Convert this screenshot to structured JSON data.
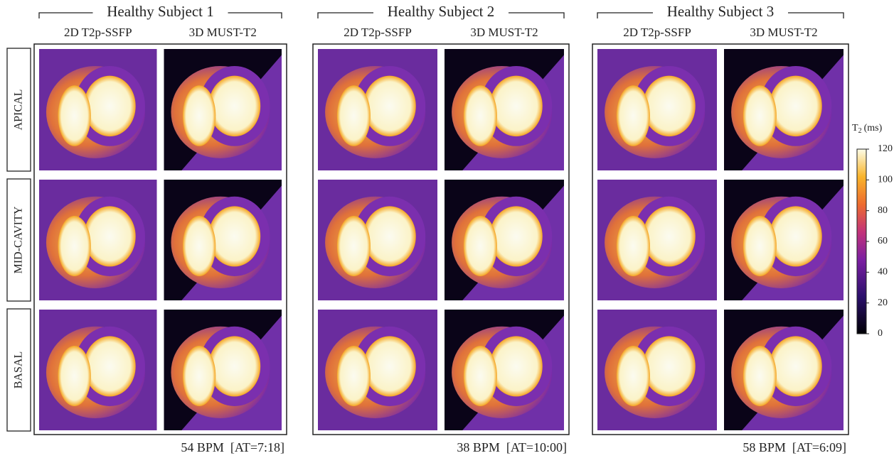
{
  "subjects": [
    {
      "title": "Healthy Subject 1",
      "columns": [
        "2D T2p-SSFP",
        "3D MUST-T2"
      ],
      "footer": "54 BPM  [AT=7:18]"
    },
    {
      "title": "Healthy Subject 2",
      "columns": [
        "2D T2p-SSFP",
        "3D MUST-T2"
      ],
      "footer": "38 BPM  [AT=10:00]"
    },
    {
      "title": "Healthy Subject 3",
      "columns": [
        "2D T2p-SSFP",
        "3D MUST-T2"
      ],
      "footer": "58 BPM  [AT=6:09]"
    }
  ],
  "rows": [
    "APICAL",
    "MID-CAVITY",
    "BASAL"
  ],
  "colorbar": {
    "label": "T",
    "label_subscript": "2",
    "unit": "(ms)",
    "lim": [
      0,
      120
    ],
    "ticks": [
      0,
      20,
      40,
      60,
      80,
      100,
      120
    ]
  }
}
